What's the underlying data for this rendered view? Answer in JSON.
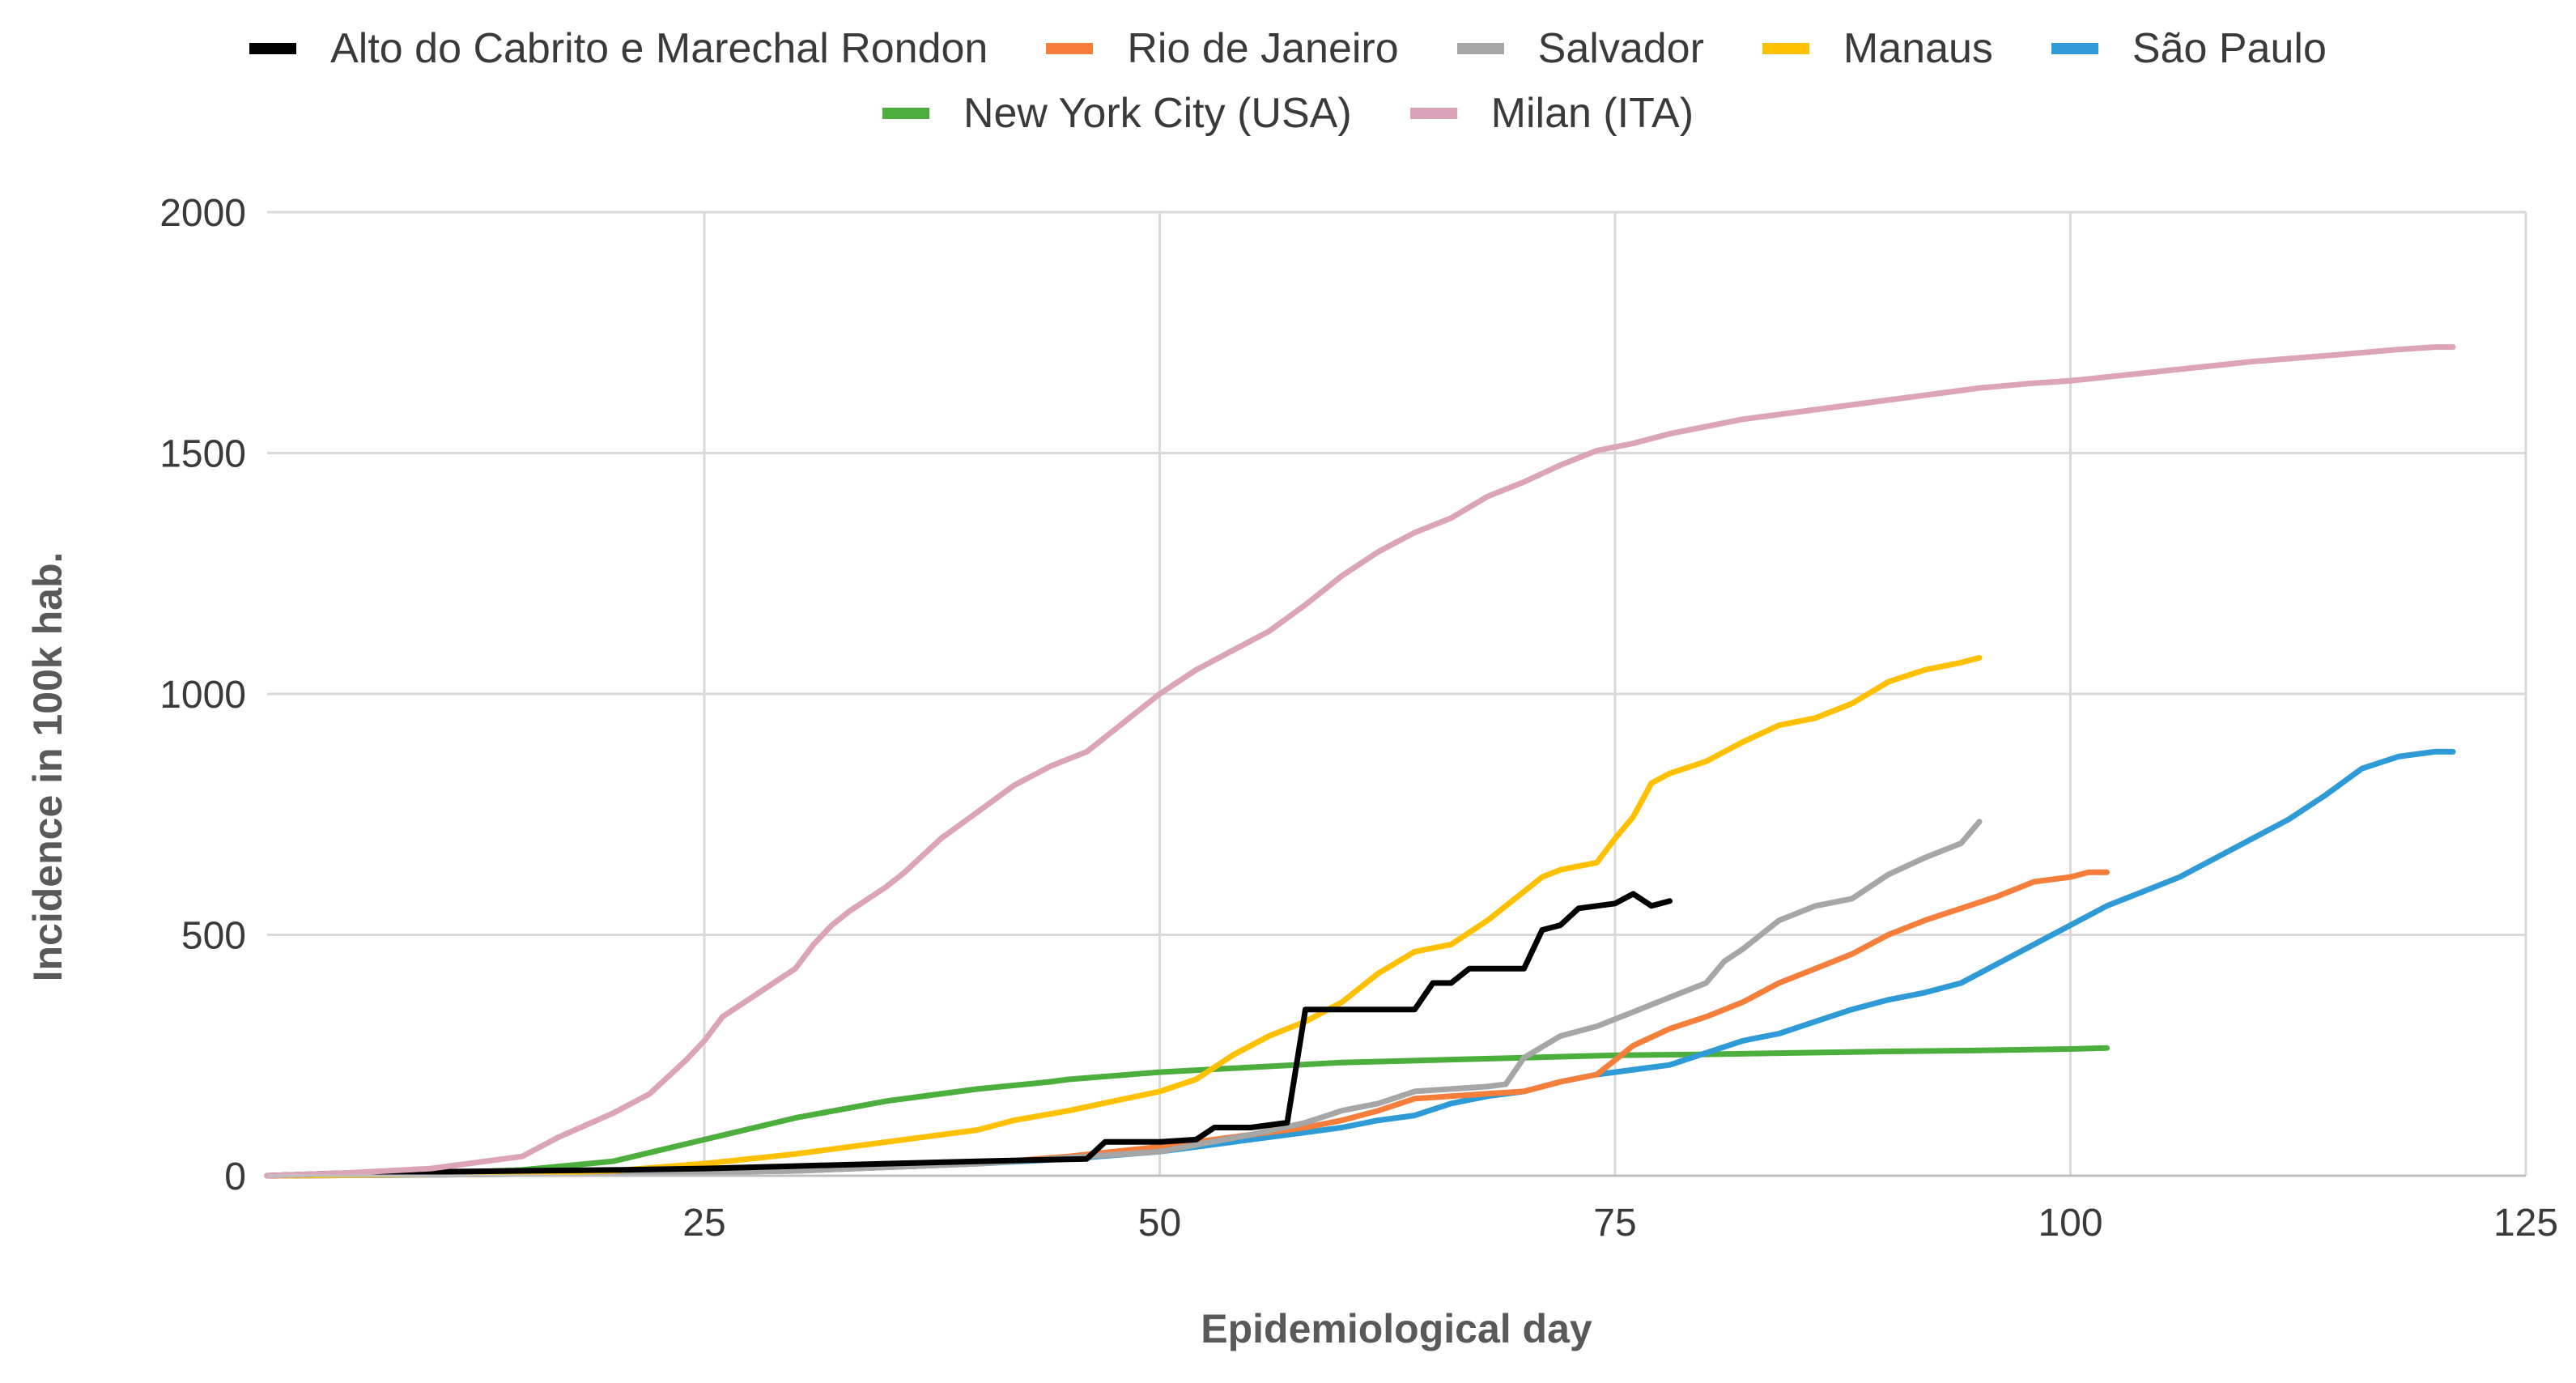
{
  "chart_data": {
    "type": "line",
    "title": "",
    "xlabel": "Epidemiological day",
    "ylabel": "Incidence in 100k hab.",
    "xlim": [
      1,
      125
    ],
    "ylim": [
      0,
      2000
    ],
    "xticks": [
      25,
      50,
      75,
      100,
      125
    ],
    "yticks": [
      0,
      500,
      1000,
      1500,
      2000
    ],
    "grid": true,
    "legend_position": "top",
    "series": [
      {
        "name": "Alto do Cabrito e Marechal Rondon",
        "color": "#000000",
        "x": [
          1,
          5,
          10,
          15,
          20,
          25,
          30,
          35,
          40,
          46,
          47,
          50,
          52,
          53,
          55,
          57,
          58,
          60,
          62,
          64,
          65,
          66,
          67,
          68,
          70,
          71,
          72,
          73,
          74,
          75,
          76,
          77,
          78
        ],
        "y": [
          0,
          5,
          8,
          10,
          12,
          15,
          20,
          25,
          30,
          35,
          70,
          70,
          75,
          100,
          100,
          110,
          345,
          345,
          345,
          345,
          400,
          400,
          430,
          430,
          430,
          510,
          520,
          555,
          560,
          565,
          585,
          560,
          570
        ]
      },
      {
        "name": "Rio de Janeiro",
        "color": "#f47e3a",
        "x": [
          1,
          10,
          20,
          30,
          40,
          45,
          50,
          55,
          58,
          60,
          62,
          64,
          66,
          68,
          70,
          72,
          74,
          75,
          76,
          78,
          80,
          82,
          84,
          86,
          88,
          90,
          92,
          94,
          96,
          98,
          100,
          101,
          102
        ],
        "y": [
          0,
          2,
          5,
          10,
          25,
          40,
          60,
          85,
          100,
          115,
          135,
          160,
          165,
          170,
          175,
          195,
          210,
          240,
          270,
          305,
          330,
          360,
          400,
          430,
          460,
          500,
          530,
          555,
          580,
          610,
          620,
          630,
          630
        ]
      },
      {
        "name": "Salvador",
        "color": "#a6a6a6",
        "x": [
          1,
          10,
          20,
          30,
          40,
          50,
          55,
          58,
          60,
          62,
          64,
          66,
          68,
          69,
          70,
          72,
          74,
          76,
          78,
          80,
          81,
          82,
          84,
          86,
          88,
          90,
          92,
          94,
          95
        ],
        "y": [
          0,
          2,
          5,
          10,
          25,
          50,
          85,
          110,
          135,
          150,
          175,
          180,
          185,
          190,
          245,
          290,
          310,
          340,
          370,
          400,
          445,
          470,
          530,
          560,
          575,
          625,
          660,
          690,
          735
        ]
      },
      {
        "name": "Manaus",
        "color": "#ffc000",
        "x": [
          1,
          15,
          20,
          25,
          30,
          35,
          40,
          42,
          45,
          50,
          52,
          54,
          56,
          58,
          60,
          62,
          64,
          66,
          68,
          70,
          71,
          72,
          74,
          75,
          76,
          77,
          78,
          80,
          82,
          84,
          86,
          88,
          90,
          92,
          94,
          95
        ],
        "y": [
          0,
          5,
          10,
          25,
          45,
          70,
          95,
          115,
          135,
          175,
          200,
          250,
          290,
          320,
          360,
          420,
          465,
          480,
          530,
          590,
          620,
          635,
          650,
          700,
          745,
          815,
          835,
          860,
          900,
          935,
          950,
          980,
          1025,
          1050,
          1065,
          1075
        ]
      },
      {
        "name": "São Paulo",
        "color": "#2e9bd6",
        "x": [
          1,
          10,
          20,
          30,
          40,
          45,
          50,
          55,
          58,
          60,
          62,
          64,
          66,
          68,
          70,
          72,
          74,
          75,
          76,
          78,
          80,
          82,
          84,
          86,
          88,
          90,
          92,
          94,
          96,
          98,
          100,
          102,
          104,
          106,
          108,
          110,
          112,
          114,
          116,
          118,
          120,
          121
        ],
        "y": [
          0,
          2,
          5,
          10,
          25,
          35,
          50,
          75,
          90,
          100,
          115,
          125,
          150,
          165,
          175,
          195,
          210,
          215,
          220,
          230,
          255,
          280,
          295,
          320,
          345,
          365,
          380,
          400,
          440,
          480,
          520,
          560,
          590,
          620,
          660,
          700,
          740,
          790,
          845,
          870,
          880,
          880
        ]
      },
      {
        "name": "New York City (USA)",
        "color": "#4caf3d",
        "x": [
          1,
          10,
          15,
          20,
          25,
          30,
          35,
          40,
          44,
          45,
          50,
          55,
          60,
          65,
          70,
          75,
          80,
          85,
          90,
          95,
          100,
          102
        ],
        "y": [
          0,
          5,
          12,
          30,
          75,
          120,
          155,
          180,
          195,
          200,
          215,
          225,
          235,
          240,
          245,
          250,
          252,
          255,
          258,
          260,
          263,
          265
        ]
      },
      {
        "name": "Milan (ITA)",
        "color": "#dca4b8",
        "x": [
          1,
          5,
          10,
          15,
          17,
          20,
          22,
          24,
          25,
          26,
          27,
          28,
          30,
          31,
          32,
          33,
          35,
          36,
          38,
          40,
          42,
          44,
          46,
          48,
          50,
          52,
          54,
          56,
          58,
          60,
          62,
          64,
          66,
          68,
          70,
          72,
          74,
          76,
          78,
          80,
          82,
          85,
          88,
          90,
          92,
          95,
          98,
          100,
          105,
          110,
          115,
          118,
          120,
          121
        ],
        "y": [
          0,
          5,
          15,
          40,
          80,
          130,
          170,
          240,
          280,
          330,
          355,
          380,
          430,
          480,
          520,
          550,
          600,
          630,
          700,
          755,
          810,
          850,
          880,
          940,
          1000,
          1050,
          1090,
          1130,
          1185,
          1245,
          1295,
          1335,
          1365,
          1410,
          1440,
          1475,
          1505,
          1520,
          1540,
          1555,
          1570,
          1585,
          1600,
          1610,
          1620,
          1635,
          1645,
          1650,
          1670,
          1690,
          1705,
          1715,
          1720,
          1720
        ]
      }
    ]
  }
}
